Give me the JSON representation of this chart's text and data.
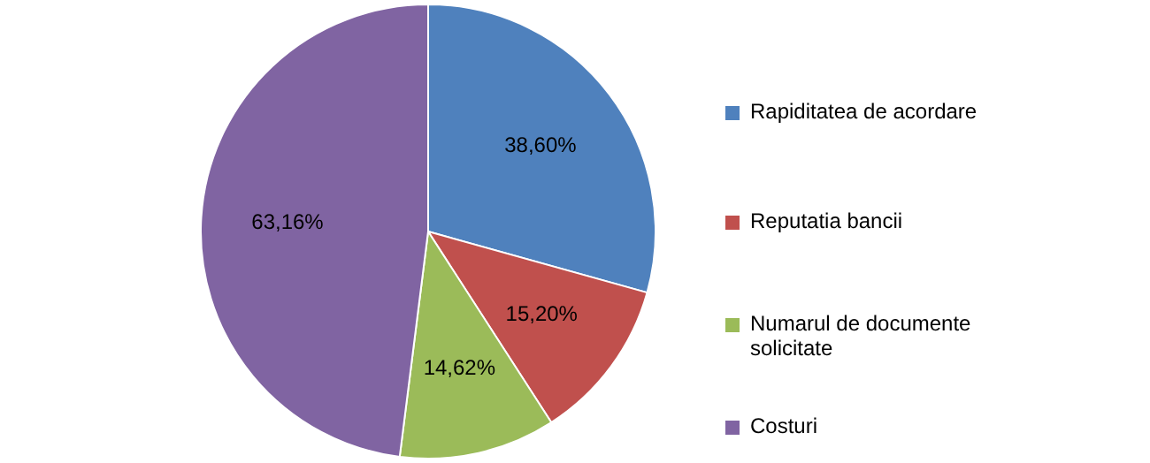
{
  "chart_data": {
    "type": "pie",
    "categories": [
      "Rapiditatea de acordare",
      "Reputatia bancii",
      "Numarul de documente solicitate",
      "Costuri"
    ],
    "values": [
      38.6,
      15.2,
      14.62,
      63.16
    ],
    "value_labels": [
      "38,60%",
      "15,20%",
      "14,62%",
      "63,16%"
    ],
    "colors": [
      "#4f81bd",
      "#c0504d",
      "#9bbb59",
      "#8064a2"
    ],
    "legend": "right"
  }
}
